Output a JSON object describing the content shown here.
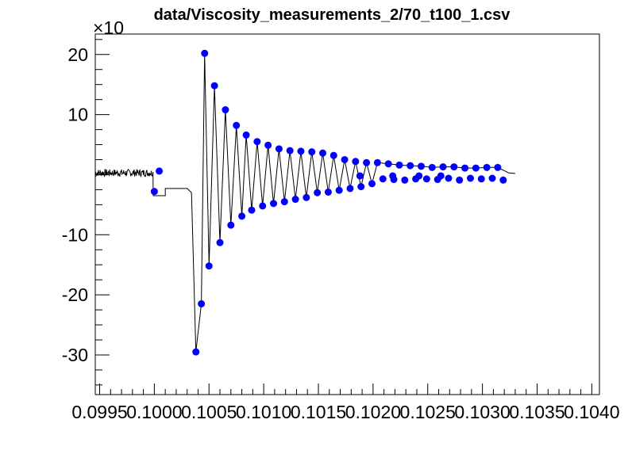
{
  "chart_data": {
    "type": "scatter",
    "title": "data/Viscosity_measurements_2/70_t100_1.csv",
    "y_exponent_label": "×10",
    "xlim": [
      0.09946,
      0.10407
    ],
    "ylim": [
      -36.6,
      23.4
    ],
    "x_tick_labels": [
      "0.0995",
      "0.1000",
      "0.1005",
      "0.1010",
      "0.1015",
      "0.1020",
      "0.1025",
      "0.1030",
      "0.1035",
      "0.1040"
    ],
    "x_tick_values": [
      0.0995,
      0.1,
      0.1005,
      0.101,
      0.1015,
      0.102,
      0.1025,
      0.103,
      0.1035,
      0.104
    ],
    "y_tick_labels": [
      "20",
      "10",
      "-10",
      "-20",
      "-30"
    ],
    "y_tick_values": [
      20,
      10,
      -10,
      -20,
      -30
    ],
    "grid": false,
    "marker_color": "#0000ff",
    "line_color": "#000000",
    "peak_points": {
      "x": [
        0.100045,
        0.10046,
        0.10055,
        0.10065,
        0.10075,
        0.10084,
        0.10094,
        0.10104,
        0.10114,
        0.10124,
        0.10134,
        0.10144,
        0.10154,
        0.10164,
        0.10174,
        0.10184,
        0.10194,
        0.10204,
        0.10214,
        0.10224,
        0.10234,
        0.10244,
        0.10254,
        0.10264,
        0.10274,
        0.10284,
        0.10294,
        0.10304,
        0.10314
      ],
      "y": [
        0.6,
        20.2,
        14.8,
        10.8,
        8.2,
        6.6,
        5.5,
        4.9,
        4.3,
        4.0,
        3.9,
        3.8,
        3.6,
        3.2,
        2.5,
        2.2,
        2.0,
        2.0,
        1.8,
        1.6,
        1.5,
        1.4,
        1.2,
        1.3,
        1.3,
        1.1,
        1.1,
        1.2,
        1.2
      ]
    },
    "trough_points": {
      "x": [
        0.1,
        0.10038,
        0.10043,
        0.1005,
        0.1006,
        0.1007,
        0.1008,
        0.10089,
        0.10099,
        0.10109,
        0.10119,
        0.10129,
        0.10139,
        0.10149,
        0.10159,
        0.10169,
        0.10179,
        0.10189,
        0.10199,
        0.10209,
        0.10219,
        0.10229,
        0.10239,
        0.10249,
        0.10259,
        0.10269,
        0.10279,
        0.10289,
        0.10299,
        0.10309,
        0.10319,
        0.10188,
        0.10218,
        0.10242,
        0.10262
      ],
      "y": [
        -2.8,
        -29.5,
        -21.5,
        -15.2,
        -11.3,
        -8.4,
        -6.9,
        -5.9,
        -5.2,
        -4.8,
        -4.5,
        -4.1,
        -3.8,
        -3.0,
        -2.9,
        -2.6,
        -2.3,
        -2.0,
        -1.5,
        -0.7,
        -0.8,
        -0.9,
        -0.7,
        -0.7,
        -0.8,
        -0.6,
        -0.9,
        -0.6,
        -0.7,
        -0.6,
        -0.9,
        -0.2,
        -0.2,
        -0.2,
        -0.2
      ]
    }
  }
}
